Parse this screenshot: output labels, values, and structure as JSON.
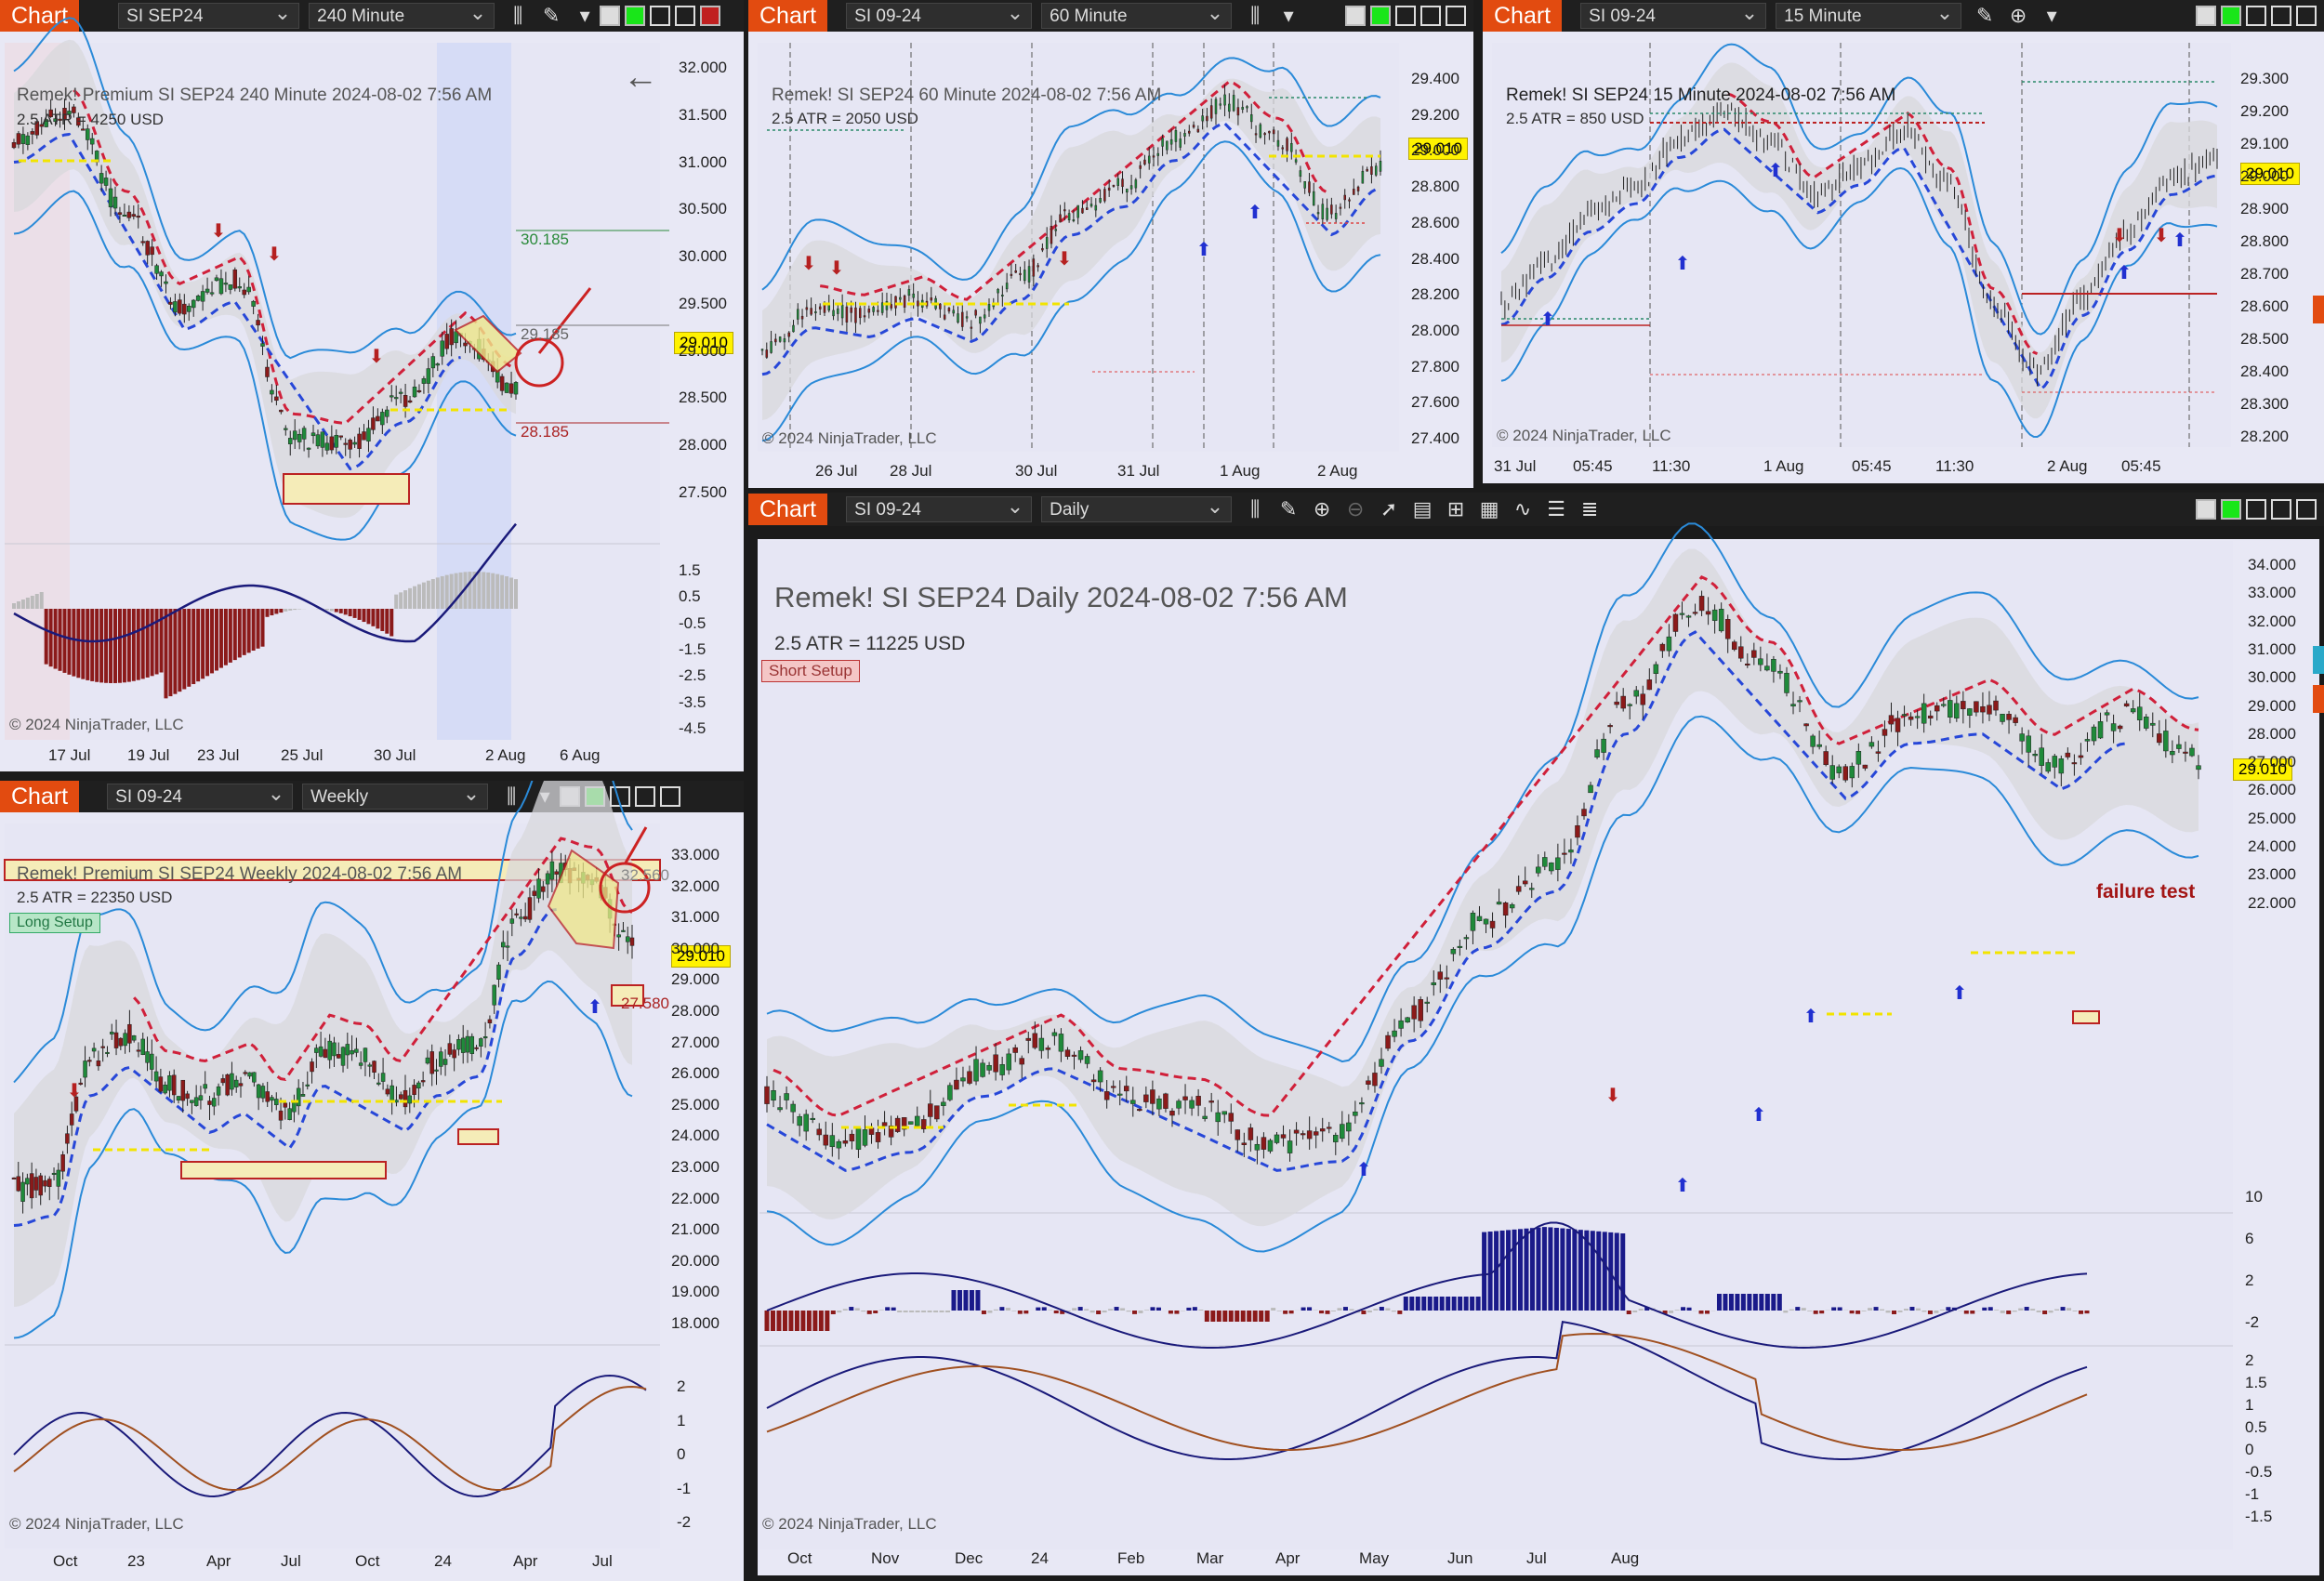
{
  "common": {
    "chart_tag": "Chart",
    "copyright": "© 2024 NinjaTrader, LLC",
    "price_label": "29.010"
  },
  "panel1": {
    "instrument": "SI SEP24",
    "interval": "240 Minute",
    "header": "Remek!  Premium  SI SEP24  240 Minute  2024-08-02 7:56 AM",
    "atr": "2.5 ATR = 4250 USD",
    "price_ticks": [
      "32.000",
      "31.500",
      "31.000",
      "30.500",
      "30.000",
      "29.500",
      "29.000",
      "28.500",
      "28.000",
      "27.500"
    ],
    "osc_ticks": [
      "1.5",
      "0.5",
      "-0.5",
      "-1.5",
      "-2.5",
      "-3.5",
      "-4.5"
    ],
    "x_ticks": [
      "17 Jul",
      "19 Jul",
      "23 Jul",
      "25 Jul",
      "30 Jul",
      "2 Aug",
      "6 Aug"
    ],
    "target_upper": "30.185",
    "target_mid": "29.185",
    "target_lower": "28.185"
  },
  "panel2": {
    "instrument": "SI 09-24",
    "interval": "60 Minute",
    "header": "Remek!  SI SEP24  60 Minute  2024-08-02 7:56 AM",
    "atr": "2.5 ATR = 2050 USD",
    "price_ticks": [
      "29.400",
      "29.200",
      "29.000",
      "28.800",
      "28.600",
      "28.400",
      "28.200",
      "28.000",
      "27.800",
      "27.600",
      "27.400"
    ],
    "x_ticks": [
      "26 Jul",
      "28 Jul",
      "30 Jul",
      "31 Jul",
      "1 Aug",
      "2 Aug"
    ]
  },
  "panel3": {
    "instrument": "SI 09-24",
    "interval": "15 Minute",
    "header": "Remek!  SI SEP24  15 Minute  2024-08-02 7:56 AM",
    "atr": "2.5 ATR = 850 USD",
    "price_ticks": [
      "29.300",
      "29.200",
      "29.100",
      "29.000",
      "28.900",
      "28.800",
      "28.700",
      "28.600",
      "28.500",
      "28.400",
      "28.300",
      "28.200"
    ],
    "x_ticks": [
      "31 Jul",
      "05:45",
      "11:30",
      "1 Aug",
      "05:45",
      "11:30",
      "2 Aug",
      "05:45"
    ]
  },
  "panel4": {
    "instrument": "SI 09-24",
    "interval": "Weekly",
    "header": "Remek!  Premium  SI SEP24  Weekly  2024-08-02 7:56 AM",
    "atr": "2.5 ATR = 22350 USD",
    "setup": "Long Setup",
    "price_ticks": [
      "33.000",
      "32.000",
      "31.000",
      "30.000",
      "29.000",
      "28.000",
      "27.000",
      "26.000",
      "25.000",
      "24.000",
      "23.000",
      "22.000",
      "21.000",
      "20.000",
      "19.000",
      "18.000"
    ],
    "osc_ticks": [
      "2",
      "1",
      "0",
      "-1",
      "-2"
    ],
    "x_ticks": [
      "Oct",
      "23",
      "Apr",
      "Jul",
      "Oct",
      "24",
      "Apr",
      "Jul"
    ],
    "level_upper": "32.560",
    "level_lower": "27.580"
  },
  "panel5": {
    "instrument": "SI 09-24",
    "interval": "Daily",
    "header": "Remek!  SI SEP24  Daily  2024-08-02 7:56 AM",
    "atr": "2.5 ATR = 11225 USD",
    "setup": "Short Setup",
    "annotation": "failure test",
    "price_ticks": [
      "34.000",
      "33.000",
      "32.000",
      "31.000",
      "30.000",
      "29.000",
      "28.000",
      "27.000",
      "26.000",
      "25.000",
      "24.000",
      "23.000",
      "22.000"
    ],
    "hist_ticks": [
      "10",
      "6",
      "2",
      "-2"
    ],
    "osc_ticks": [
      "2",
      "1.5",
      "1",
      "0.5",
      "0",
      "-0.5",
      "-1",
      "-1.5"
    ],
    "x_ticks": [
      "Oct",
      "Nov",
      "Dec",
      "24",
      "Feb",
      "Mar",
      "Apr",
      "May",
      "Jun",
      "Jul",
      "Aug"
    ]
  }
}
